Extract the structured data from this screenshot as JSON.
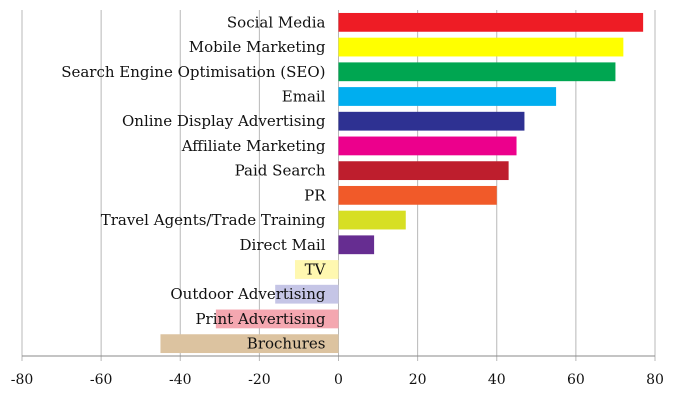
{
  "chart_data": {
    "type": "bar",
    "orientation": "horizontal",
    "title": "",
    "xlabel": "",
    "ylabel": "",
    "xlim": [
      -80,
      80
    ],
    "x_ticks": [
      -80,
      -60,
      -40,
      -20,
      0,
      20,
      40,
      60,
      80
    ],
    "grid": "vertical",
    "legend": "none",
    "categories": [
      "Social Media",
      "Mobile Marketing",
      "Search Engine Optimisation (SEO)",
      "Email",
      "Online Display Advertising",
      "Affiliate Marketing",
      "Paid Search",
      "PR",
      "Travel Agents/Trade Training",
      "Direct Mail",
      "TV",
      "Outdoor Advertising",
      "Print Advertising",
      "Brochures"
    ],
    "values": [
      77,
      72,
      70,
      55,
      47,
      45,
      43,
      40,
      17,
      9,
      -11,
      -16,
      -31,
      -45
    ],
    "colors": [
      "#ee1c25",
      "#ffff00",
      "#00a651",
      "#00aeef",
      "#2e3192",
      "#ec008c",
      "#be1e2d",
      "#f15a29",
      "#d7df23",
      "#662d91",
      "#fff8b0",
      "#c5c5e6",
      "#f4a7b0",
      "#dcc3a0"
    ]
  }
}
